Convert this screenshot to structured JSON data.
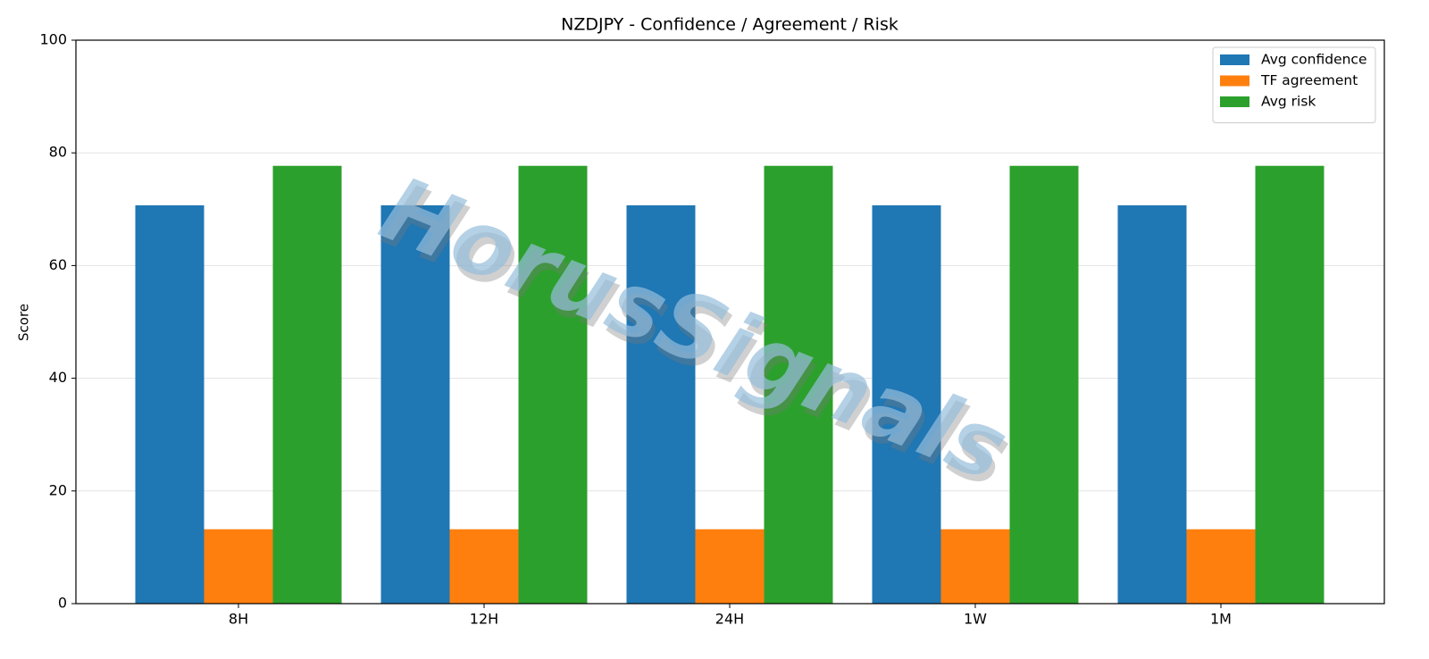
{
  "chart_data": {
    "type": "bar",
    "title": "NZDJPY - Confidence / Agreement / Risk",
    "y_label": "Score",
    "watermark": "HorusSignals",
    "categories": [
      "8H",
      "12H",
      "24H",
      "1W",
      "1M"
    ],
    "series": [
      {
        "name": "Avg confidence",
        "color": "#1f77b4",
        "values": [
          70.7,
          70.7,
          70.7,
          70.7,
          70.7
        ]
      },
      {
        "name": "TF agreement",
        "color": "#ff7f0e",
        "values": [
          13.2,
          13.2,
          13.2,
          13.2,
          13.2
        ]
      },
      {
        "name": "Avg risk",
        "color": "#2ca02c",
        "values": [
          77.7,
          77.7,
          77.7,
          77.7,
          77.7
        ]
      }
    ],
    "ylim": [
      0,
      100
    ],
    "yticks": [
      0,
      20,
      40,
      60,
      80,
      100
    ],
    "grid": true,
    "legend": "upper right"
  }
}
